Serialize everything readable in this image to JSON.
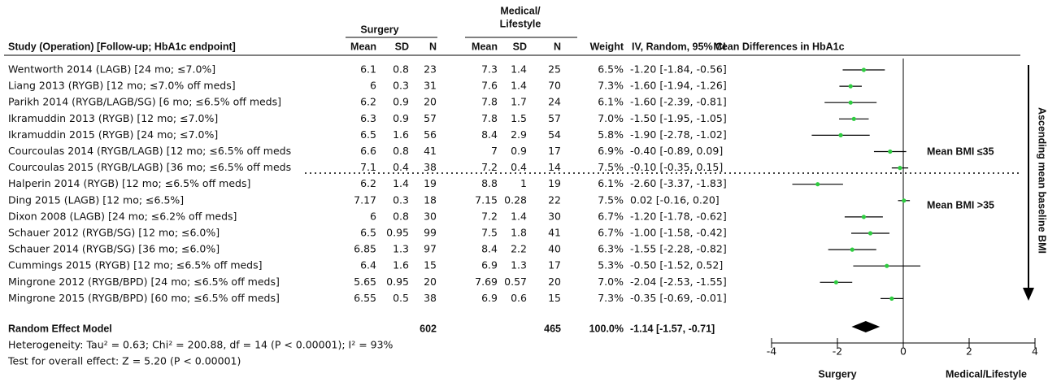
{
  "chart_data": {
    "type": "forest",
    "plot_title": "Mean Differences in HbA1c",
    "study_header": "Study (Operation) [Follow-up; HbA1c endpoint]",
    "surgery_header": "Surgery",
    "medical_header": [
      "Medical/",
      "Lifestyle"
    ],
    "subheaders": [
      "Mean",
      "SD",
      "N"
    ],
    "weight_header": "Weight",
    "ci_header": "IV, Random, 95% CI",
    "rows": [
      {
        "study": "Wentworth 2014 (LAGB) [24 mo; ≤7.0%]",
        "surgery": [
          6.1,
          0.8,
          23
        ],
        "medical": [
          7.3,
          1.4,
          25
        ],
        "weight": "6.5%",
        "ci_label": "-1.20 [-1.84, -0.56]",
        "effect": -1.2,
        "lower": -1.84,
        "upper": -0.56
      },
      {
        "study": "Liang 2013 (RYGB) [12 mo; ≤7.0% off meds]",
        "surgery": [
          6,
          0.3,
          31
        ],
        "medical": [
          7.6,
          1.4,
          70
        ],
        "weight": "7.3%",
        "ci_label": "-1.60 [-1.94, -1.26]",
        "effect": -1.6,
        "lower": -1.94,
        "upper": -1.26
      },
      {
        "study": "Parikh 2014 (RYGB/LAGB/SG) [6 mo; ≤6.5% off meds]",
        "surgery": [
          6.2,
          0.9,
          20
        ],
        "medical": [
          7.8,
          1.7,
          24
        ],
        "weight": "6.1%",
        "ci_label": "-1.60 [-2.39, -0.81]",
        "effect": -1.6,
        "lower": -2.39,
        "upper": -0.81
      },
      {
        "study": "Ikramuddin 2013 (RYGB) [12 mo; ≤7.0%]",
        "surgery": [
          6.3,
          0.9,
          57
        ],
        "medical": [
          7.8,
          1.5,
          57
        ],
        "weight": "7.0%",
        "ci_label": "-1.50 [-1.95, -1.05]",
        "effect": -1.5,
        "lower": -1.95,
        "upper": -1.05
      },
      {
        "study": "Ikramuddin 2015 (RYGB) [24 mo; ≤7.0%]",
        "surgery": [
          6.5,
          1.6,
          56
        ],
        "medical": [
          8.4,
          2.9,
          54
        ],
        "weight": "5.8%",
        "ci_label": "-1.90 [-2.78, -1.02]",
        "effect": -1.9,
        "lower": -2.78,
        "upper": -1.02
      },
      {
        "study": "Courcoulas 2014 (RYGB/LAGB) [12 mo; ≤6.5% off meds",
        "surgery": [
          6.6,
          0.8,
          41
        ],
        "medical": [
          7,
          0.9,
          17
        ],
        "weight": "6.9%",
        "ci_label": "-0.40 [-0.89, 0.09]",
        "effect": -0.4,
        "lower": -0.89,
        "upper": 0.09
      },
      {
        "study": "Courcoulas 2015 (RYGB/LAGB) [36 mo; ≤6.5% off meds",
        "surgery": [
          7.1,
          0.4,
          38
        ],
        "medical": [
          7.2,
          0.4,
          14
        ],
        "weight": "7.5%",
        "ci_label": "-0.10 [-0.35, 0.15]",
        "effect": -0.1,
        "lower": -0.35,
        "upper": 0.15
      },
      {
        "study": "Halperin 2014 (RYGB) [12 mo; ≤6.5% off meds]",
        "surgery": [
          6.2,
          1.4,
          19
        ],
        "medical": [
          8.8,
          1,
          19
        ],
        "weight": "6.1%",
        "ci_label": "-2.60 [-3.37, -1.83]",
        "effect": -2.6,
        "lower": -3.37,
        "upper": -1.83
      },
      {
        "study": "Ding 2015 (LAGB) [12 mo; ≤6.5%]",
        "surgery": [
          7.17,
          0.3,
          18
        ],
        "medical": [
          7.15,
          0.28,
          22
        ],
        "weight": "7.5%",
        "ci_label": "0.02 [-0.16, 0.20]",
        "effect": 0.02,
        "lower": -0.16,
        "upper": 0.2
      },
      {
        "study": "Dixon 2008 (LAGB) [24 mo; ≤6.2% off meds]",
        "surgery": [
          6,
          0.8,
          30
        ],
        "medical": [
          7.2,
          1.4,
          30
        ],
        "weight": "6.7%",
        "ci_label": "-1.20 [-1.78, -0.62]",
        "effect": -1.2,
        "lower": -1.78,
        "upper": -0.62
      },
      {
        "study": "Schauer 2012 (RYGB/SG) [12 mo; ≤6.0%]",
        "surgery": [
          6.5,
          0.95,
          99
        ],
        "medical": [
          7.5,
          1.8,
          41
        ],
        "weight": "6.7%",
        "ci_label": "-1.00 [-1.58, -0.42]",
        "effect": -1.0,
        "lower": -1.58,
        "upper": -0.42
      },
      {
        "study": "Schauer 2014 (RYGB/SG) [36 mo; ≤6.0%]",
        "surgery": [
          6.85,
          1.3,
          97
        ],
        "medical": [
          8.4,
          2.2,
          40
        ],
        "weight": "6.3%",
        "ci_label": "-1.55 [-2.28, -0.82]",
        "effect": -1.55,
        "lower": -2.28,
        "upper": -0.82
      },
      {
        "study": "Cummings 2015 (RYGB) [12 mo; ≤6.5% off meds]",
        "surgery": [
          6.4,
          1.6,
          15
        ],
        "medical": [
          6.9,
          1.3,
          17
        ],
        "weight": "5.3%",
        "ci_label": "-0.50 [-1.52, 0.52]",
        "effect": -0.5,
        "lower": -1.52,
        "upper": 0.52
      },
      {
        "study": "Mingrone 2012 (RYGB/BPD) [24 mo; ≤6.5% off meds]",
        "surgery": [
          5.65,
          0.95,
          20
        ],
        "medical": [
          7.69,
          0.57,
          20
        ],
        "weight": "7.0%",
        "ci_label": "-2.04 [-2.53, -1.55]",
        "effect": -2.04,
        "lower": -2.53,
        "upper": -1.55
      },
      {
        "study": "Mingrone 2015 (RYGB/BPD) [60 mo; ≤6.5% off meds]",
        "surgery": [
          6.55,
          0.5,
          38
        ],
        "medical": [
          6.9,
          0.6,
          15
        ],
        "weight": "7.3%",
        "ci_label": "-0.35 [-0.69, -0.01]",
        "effect": -0.35,
        "lower": -0.69,
        "upper": -0.01
      }
    ],
    "summary": {
      "label": "Random Effect Model",
      "surgery_n": 602,
      "medical_n": 465,
      "weight": "100.0%",
      "ci_label": "-1.14 [-1.57, -0.71]",
      "effect": -1.14,
      "lower": -1.57,
      "upper": -0.71
    },
    "heterogeneity": "Heterogeneity: Tau² = 0.63; Chi² = 200.88, df = 14 (P < 0.00001); I² = 93%",
    "overall_test": "Test for overall effect: Z = 5.20 (P < 0.00001)",
    "group_labels": [
      "Mean BMI ≤35",
      "Mean BMI >35"
    ],
    "trend_label": "Ascending mean baseline BMI",
    "xlim": [
      -4,
      4
    ],
    "xticks": [
      -4,
      -2,
      0,
      2,
      4
    ],
    "x_side_labels": [
      "Surgery",
      "Medical/Lifestyle"
    ],
    "color": "#2ecc40"
  }
}
